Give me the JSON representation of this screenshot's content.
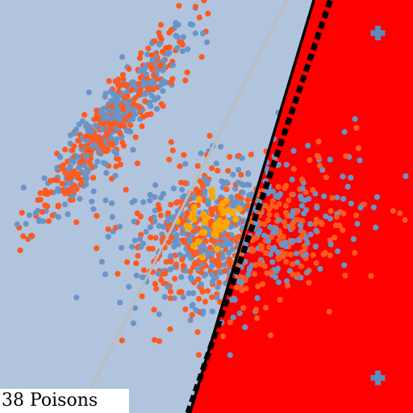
{
  "caption": "38 Poisons",
  "colors": {
    "region_blue": "#b0c4de",
    "region_red": "#ff0000",
    "class_a": "#ff5a1f",
    "class_b": "#6b94c6",
    "poison": "#ffa500",
    "marker_plus": "#5b8cc4",
    "clean_boundary": "#bcbcbc",
    "poisoned_boundary": "#000000"
  },
  "chart_data": {
    "type": "scatter",
    "xlim": [
      0,
      10
    ],
    "ylim": [
      0,
      10
    ],
    "grid": false,
    "legend": "none",
    "regions": [
      {
        "label": "negative",
        "color": "#b0c4de"
      },
      {
        "label": "positive",
        "color": "#ff0000"
      }
    ],
    "boundaries": [
      {
        "kind": "clean",
        "style": "solid",
        "points": [
          [
            2.2,
            0.6
          ],
          [
            6.95,
            10
          ]
        ]
      },
      {
        "kind": "poisoned",
        "style": "solid",
        "points": [
          [
            4.6,
            0
          ],
          [
            7.6,
            10
          ]
        ]
      },
      {
        "kind": "poisoned-alt",
        "style": "dashed",
        "points": [
          [
            4.55,
            0
          ],
          [
            8.0,
            10
          ]
        ]
      }
    ],
    "clusters": [
      {
        "class": "mixed",
        "n": 650,
        "center": [
          2.6,
          6.9
        ],
        "spread_along": 1.55,
        "spread_across": 0.28,
        "angle_deg": 52
      },
      {
        "class": "mixed",
        "n": 480,
        "center": [
          4.8,
          4.2
        ],
        "spread_along": 0.95,
        "spread_across": 0.9,
        "angle_deg": 40
      },
      {
        "class": "mixed",
        "n": 420,
        "center": [
          6.6,
          4.5
        ],
        "spread_along": 1.1,
        "spread_across": 0.9,
        "angle_deg": 20
      }
    ],
    "poisons": {
      "count": 38,
      "center": [
        5.2,
        4.6
      ],
      "spread": [
        0.38,
        0.3
      ]
    },
    "plus_markers": [
      [
        9.15,
        9.2
      ],
      [
        9.15,
        0.85
      ]
    ]
  }
}
